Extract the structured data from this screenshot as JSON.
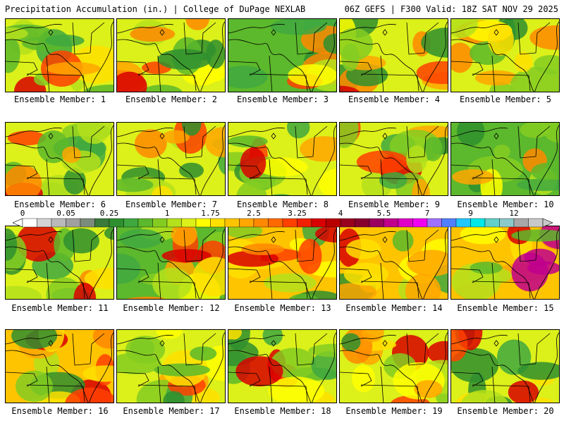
{
  "header": {
    "title": "Precipitation Accumulation (in.) | College of DuPage NEXLAB",
    "run_info": "06Z GEFS | F300 Valid: 18Z SAT NOV 29 2025"
  },
  "panels": [
    {
      "label": "Ensemble Member: 1",
      "wetness": 0.35
    },
    {
      "label": "Ensemble Member: 2",
      "wetness": 0.45
    },
    {
      "label": "Ensemble Member: 3",
      "wetness": 0.3
    },
    {
      "label": "Ensemble Member: 4",
      "wetness": 0.55
    },
    {
      "label": "Ensemble Member: 5",
      "wetness": 0.4
    },
    {
      "label": "Ensemble Member: 6",
      "wetness": 0.4
    },
    {
      "label": "Ensemble Member: 7",
      "wetness": 0.45
    },
    {
      "label": "Ensemble Member: 8",
      "wetness": 0.5
    },
    {
      "label": "Ensemble Member: 9",
      "wetness": 0.4
    },
    {
      "label": "Ensemble Member: 10",
      "wetness": 0.25
    },
    {
      "label": "Ensemble Member: 11",
      "wetness": 0.35
    },
    {
      "label": "Ensemble Member: 12",
      "wetness": 0.3
    },
    {
      "label": "Ensemble Member: 13",
      "wetness": 0.6
    },
    {
      "label": "Ensemble Member: 14",
      "wetness": 0.6
    },
    {
      "label": "Ensemble Member: 15",
      "wetness": 0.75
    },
    {
      "label": "Ensemble Member: 16",
      "wetness": 0.65
    },
    {
      "label": "Ensemble Member: 17",
      "wetness": 0.4
    },
    {
      "label": "Ensemble Member: 18",
      "wetness": 0.5
    },
    {
      "label": "Ensemble Member: 19",
      "wetness": 0.45
    },
    {
      "label": "Ensemble Member: 20",
      "wetness": 0.55
    }
  ],
  "colorbar": {
    "tick_labels": [
      "0",
      "0.05",
      "0.25",
      "1",
      "1.75",
      "2.5",
      "3.25",
      "4",
      "5.5",
      "7",
      "9",
      "12"
    ],
    "tick_indices": [
      0,
      3,
      6,
      10,
      13,
      16,
      19,
      22,
      25,
      28,
      31,
      34
    ],
    "colors": [
      "#ffffff",
      "#d4d4d4",
      "#bababa",
      "#a0a0a0",
      "#7c8c7c",
      "#3a7a3a",
      "#2f8f2f",
      "#3fa83f",
      "#5cb82c",
      "#84cc22",
      "#b4e01c",
      "#dcf01a",
      "#ffff00",
      "#ffe000",
      "#ffc400",
      "#ffa600",
      "#ff8800",
      "#ff6a00",
      "#ff4000",
      "#f02000",
      "#d80000",
      "#b80000",
      "#980020",
      "#86002e",
      "#9a0060",
      "#c0008c",
      "#e000c8",
      "#f000f0",
      "#a070ff",
      "#5080ff",
      "#20c8ff",
      "#00e8e8",
      "#60d0c8",
      "#8ccaca",
      "#a8a8a8",
      "#c8c8c8"
    ]
  }
}
